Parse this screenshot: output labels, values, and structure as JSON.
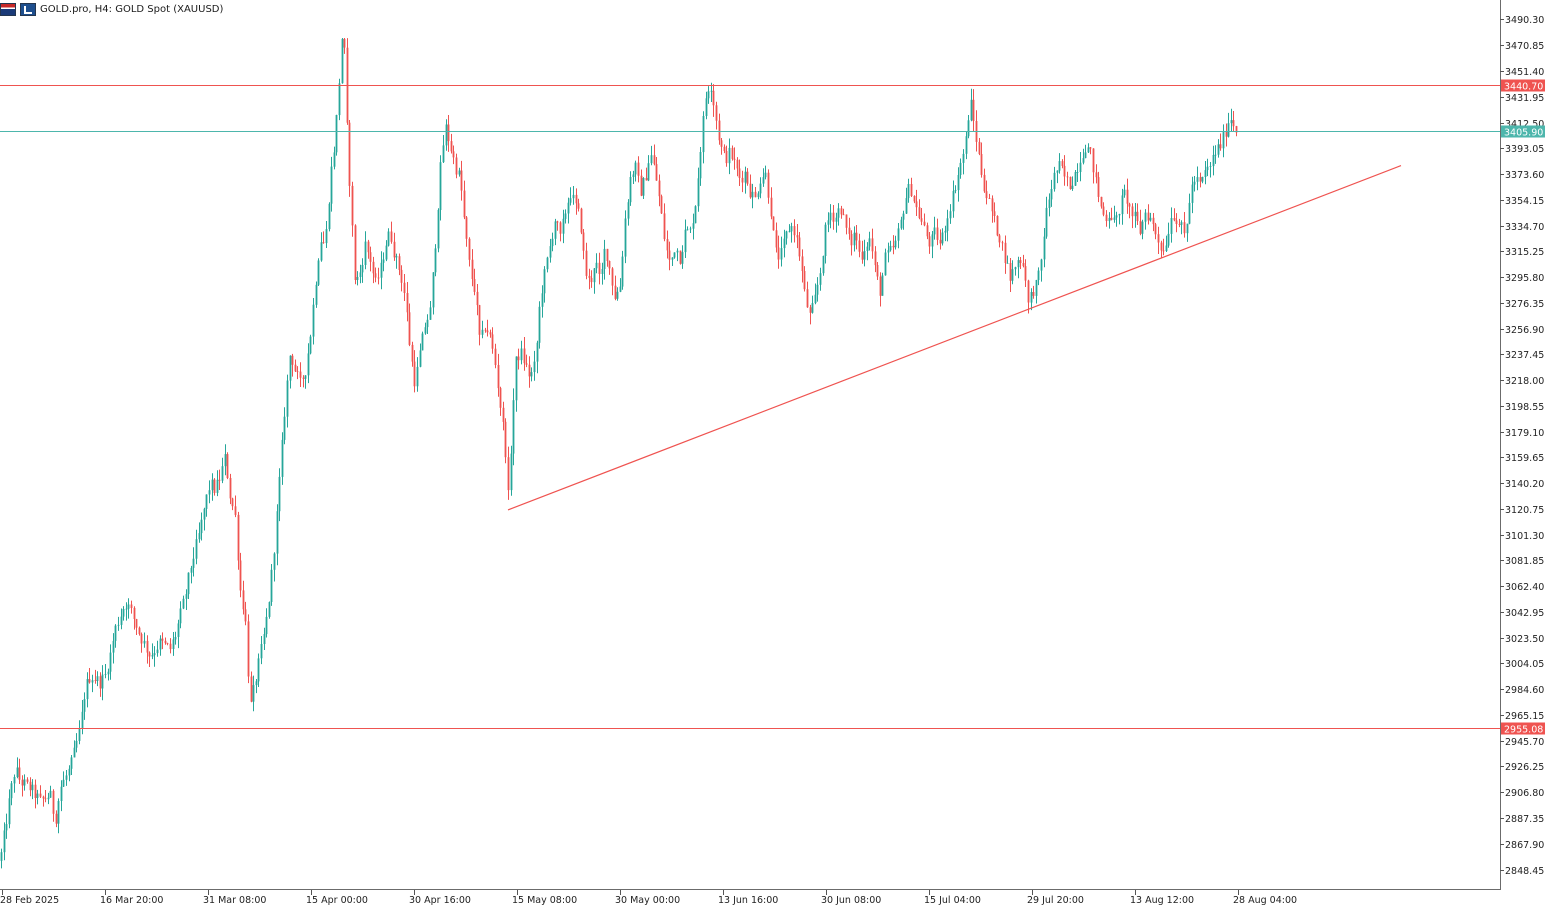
{
  "header": {
    "symbol": "GOLD.pro, H4:",
    "description": "GOLD Spot (XAUUSD)",
    "flag_icon": "market-flag-icon",
    "chart_icon": "chart-type-icon"
  },
  "colors": {
    "bull": "#26a69a",
    "bear": "#ef5350",
    "resistance": "#ef5350",
    "current": "#4db6ac",
    "trend": "#ef5350",
    "axis": "#555555"
  },
  "chart_data": {
    "type": "candlestick",
    "ylim": [
      2833.0,
      3505.0
    ],
    "y_ticks": [
      "3490.30",
      "3470.85",
      "3451.40",
      "3431.95",
      "3412.50",
      "3393.05",
      "3373.60",
      "3354.15",
      "3334.70",
      "3315.25",
      "3295.80",
      "3276.35",
      "3256.90",
      "3237.45",
      "3218.00",
      "3198.55",
      "3179.10",
      "3159.65",
      "3140.20",
      "3120.75",
      "3101.30",
      "3081.85",
      "3062.40",
      "3042.95",
      "3023.50",
      "3004.05",
      "2984.60",
      "2965.15",
      "2945.70",
      "2926.25",
      "2906.80",
      "2887.35",
      "2867.90",
      "2848.45"
    ],
    "x_ticks": [
      "28 Feb 2025",
      "16 Mar 20:00",
      "31 Mar 08:00",
      "15 Apr 00:00",
      "30 Apr 16:00",
      "15 May 08:00",
      "30 May 00:00",
      "13 Jun 16:00",
      "30 Jun 08:00",
      "15 Jul 04:00",
      "29 Jul 20:00",
      "13 Aug 12:00",
      "28 Aug 04:00"
    ],
    "price_path": [
      [
        0,
        2855
      ],
      [
        5,
        2880
      ],
      [
        10,
        2905
      ],
      [
        15,
        2925
      ],
      [
        20,
        2915
      ],
      [
        30,
        2910
      ],
      [
        40,
        2900
      ],
      [
        50,
        2905
      ],
      [
        55,
        2885
      ],
      [
        60,
        2910
      ],
      [
        70,
        2925
      ],
      [
        75,
        2940
      ],
      [
        80,
        2955
      ],
      [
        85,
        2985
      ],
      [
        90,
        2995
      ],
      [
        100,
        2990
      ],
      [
        105,
        2995
      ],
      [
        110,
        3010
      ],
      [
        115,
        3030
      ],
      [
        120,
        3040
      ],
      [
        125,
        3050
      ],
      [
        130,
        3045
      ],
      [
        140,
        3025
      ],
      [
        150,
        3010
      ],
      [
        160,
        3020
      ],
      [
        170,
        3015
      ],
      [
        175,
        3025
      ],
      [
        180,
        3040
      ],
      [
        185,
        3055
      ],
      [
        190,
        3075
      ],
      [
        195,
        3090
      ],
      [
        200,
        3105
      ],
      [
        205,
        3125
      ],
      [
        210,
        3140
      ],
      [
        215,
        3135
      ],
      [
        220,
        3145
      ],
      [
        225,
        3160
      ],
      [
        230,
        3130
      ],
      [
        235,
        3115
      ],
      [
        240,
        3060
      ],
      [
        245,
        3040
      ],
      [
        250,
        2970
      ],
      [
        255,
        2990
      ],
      [
        260,
        3010
      ],
      [
        265,
        3030
      ],
      [
        270,
        3060
      ],
      [
        275,
        3100
      ],
      [
        280,
        3150
      ],
      [
        285,
        3200
      ],
      [
        290,
        3240
      ],
      [
        295,
        3225
      ],
      [
        300,
        3215
      ],
      [
        305,
        3225
      ],
      [
        310,
        3250
      ],
      [
        315,
        3290
      ],
      [
        320,
        3325
      ],
      [
        325,
        3320
      ],
      [
        330,
        3370
      ],
      [
        335,
        3400
      ],
      [
        340,
        3455
      ],
      [
        343,
        3495
      ],
      [
        346,
        3420
      ],
      [
        350,
        3360
      ],
      [
        355,
        3290
      ],
      [
        360,
        3300
      ],
      [
        365,
        3320
      ],
      [
        370,
        3310
      ],
      [
        375,
        3290
      ],
      [
        380,
        3300
      ],
      [
        385,
        3320
      ],
      [
        390,
        3330
      ],
      [
        395,
        3310
      ],
      [
        400,
        3300
      ],
      [
        405,
        3280
      ],
      [
        410,
        3240
      ],
      [
        415,
        3215
      ],
      [
        420,
        3240
      ],
      [
        425,
        3260
      ],
      [
        430,
        3270
      ],
      [
        435,
        3320
      ],
      [
        440,
        3375
      ],
      [
        445,
        3410
      ],
      [
        450,
        3395
      ],
      [
        455,
        3380
      ],
      [
        460,
        3370
      ],
      [
        465,
        3330
      ],
      [
        470,
        3300
      ],
      [
        475,
        3285
      ],
      [
        480,
        3245
      ],
      [
        485,
        3260
      ],
      [
        490,
        3250
      ],
      [
        495,
        3230
      ],
      [
        500,
        3200
      ],
      [
        505,
        3170
      ],
      [
        508,
        3130
      ],
      [
        512,
        3185
      ],
      [
        515,
        3230
      ],
      [
        520,
        3240
      ],
      [
        525,
        3230
      ],
      [
        530,
        3220
      ],
      [
        535,
        3230
      ],
      [
        540,
        3280
      ],
      [
        545,
        3300
      ],
      [
        550,
        3320
      ],
      [
        555,
        3340
      ],
      [
        560,
        3325
      ],
      [
        565,
        3345
      ],
      [
        570,
        3360
      ],
      [
        575,
        3350
      ],
      [
        580,
        3340
      ],
      [
        585,
        3300
      ],
      [
        590,
        3290
      ],
      [
        595,
        3310
      ],
      [
        600,
        3290
      ],
      [
        605,
        3320
      ],
      [
        610,
        3300
      ],
      [
        615,
        3280
      ],
      [
        620,
        3290
      ],
      [
        625,
        3340
      ],
      [
        630,
        3370
      ],
      [
        635,
        3380
      ],
      [
        640,
        3360
      ],
      [
        645,
        3370
      ],
      [
        650,
        3390
      ],
      [
        655,
        3375
      ],
      [
        660,
        3350
      ],
      [
        665,
        3320
      ],
      [
        670,
        3305
      ],
      [
        675,
        3320
      ],
      [
        680,
        3310
      ],
      [
        685,
        3330
      ],
      [
        690,
        3330
      ],
      [
        695,
        3350
      ],
      [
        700,
        3390
      ],
      [
        705,
        3430
      ],
      [
        710,
        3445
      ],
      [
        715,
        3420
      ],
      [
        720,
        3395
      ],
      [
        725,
        3385
      ],
      [
        730,
        3390
      ],
      [
        735,
        3380
      ],
      [
        740,
        3370
      ],
      [
        745,
        3375
      ],
      [
        750,
        3360
      ],
      [
        755,
        3355
      ],
      [
        760,
        3370
      ],
      [
        765,
        3375
      ],
      [
        770,
        3350
      ],
      [
        775,
        3315
      ],
      [
        780,
        3310
      ],
      [
        785,
        3325
      ],
      [
        790,
        3335
      ],
      [
        795,
        3330
      ],
      [
        800,
        3310
      ],
      [
        805,
        3280
      ],
      [
        810,
        3265
      ],
      [
        815,
        3280
      ],
      [
        820,
        3300
      ],
      [
        825,
        3330
      ],
      [
        830,
        3345
      ],
      [
        835,
        3340
      ],
      [
        840,
        3350
      ],
      [
        845,
        3335
      ],
      [
        850,
        3320
      ],
      [
        855,
        3330
      ],
      [
        860,
        3310
      ],
      [
        865,
        3320
      ],
      [
        870,
        3325
      ],
      [
        875,
        3300
      ],
      [
        880,
        3285
      ],
      [
        885,
        3310
      ],
      [
        890,
        3315
      ],
      [
        895,
        3320
      ],
      [
        900,
        3335
      ],
      [
        905,
        3355
      ],
      [
        910,
        3365
      ],
      [
        915,
        3350
      ],
      [
        920,
        3340
      ],
      [
        925,
        3330
      ],
      [
        930,
        3320
      ],
      [
        935,
        3330
      ],
      [
        940,
        3320
      ],
      [
        945,
        3335
      ],
      [
        950,
        3350
      ],
      [
        955,
        3365
      ],
      [
        960,
        3380
      ],
      [
        965,
        3395
      ],
      [
        970,
        3430
      ],
      [
        975,
        3405
      ],
      [
        980,
        3380
      ],
      [
        985,
        3360
      ],
      [
        990,
        3350
      ],
      [
        995,
        3335
      ],
      [
        1000,
        3325
      ],
      [
        1005,
        3310
      ],
      [
        1010,
        3295
      ],
      [
        1015,
        3305
      ],
      [
        1020,
        3310
      ],
      [
        1025,
        3300
      ],
      [
        1028,
        3275
      ],
      [
        1032,
        3285
      ],
      [
        1036,
        3290
      ],
      [
        1040,
        3300
      ],
      [
        1045,
        3340
      ],
      [
        1050,
        3360
      ],
      [
        1055,
        3375
      ],
      [
        1060,
        3380
      ],
      [
        1065,
        3370
      ],
      [
        1070,
        3365
      ],
      [
        1075,
        3375
      ],
      [
        1080,
        3385
      ],
      [
        1085,
        3395
      ],
      [
        1090,
        3390
      ],
      [
        1095,
        3370
      ],
      [
        1100,
        3350
      ],
      [
        1105,
        3340
      ],
      [
        1110,
        3345
      ],
      [
        1115,
        3335
      ],
      [
        1120,
        3350
      ],
      [
        1125,
        3360
      ],
      [
        1130,
        3345
      ],
      [
        1135,
        3340
      ],
      [
        1140,
        3330
      ],
      [
        1145,
        3345
      ],
      [
        1150,
        3340
      ],
      [
        1155,
        3330
      ],
      [
        1160,
        3320
      ],
      [
        1163,
        3315
      ],
      [
        1168,
        3330
      ],
      [
        1172,
        3345
      ],
      [
        1176,
        3340
      ],
      [
        1180,
        3335
      ],
      [
        1185,
        3325
      ],
      [
        1190,
        3360
      ],
      [
        1195,
        3370
      ],
      [
        1200,
        3365
      ],
      [
        1205,
        3375
      ],
      [
        1210,
        3380
      ],
      [
        1215,
        3390
      ],
      [
        1220,
        3395
      ],
      [
        1225,
        3405
      ],
      [
        1230,
        3418
      ],
      [
        1234,
        3410
      ],
      [
        1237,
        3406
      ]
    ],
    "resistance_levels": [
      {
        "value": 3440.7,
        "label": "3440.70"
      },
      {
        "value": 2955.08,
        "label": "2955.08"
      }
    ],
    "current_price": {
      "value": 3405.9,
      "label": "3405.90"
    },
    "trendline": {
      "from": {
        "x_index": 508,
        "price": 3120.0
      },
      "to": {
        "x_index": 1401,
        "price": 3380.0
      }
    }
  }
}
